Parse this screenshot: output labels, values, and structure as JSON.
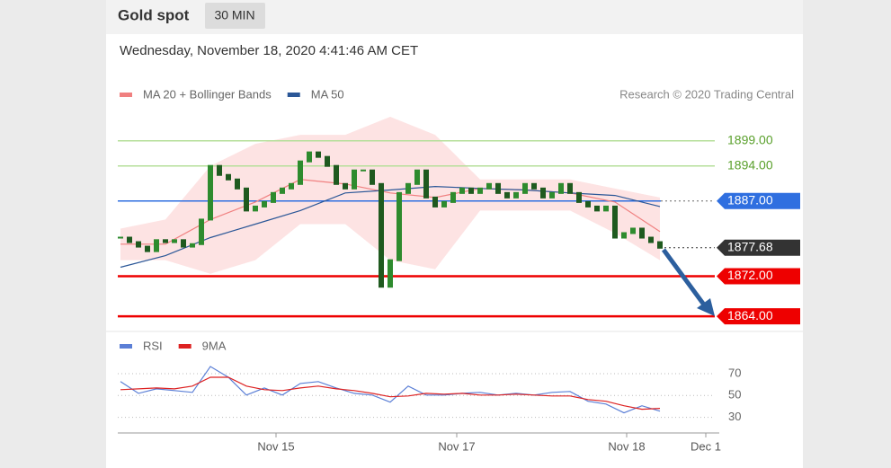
{
  "header": {
    "title": "Gold spot",
    "timeframe": "30 MIN",
    "timestamp": "Wednesday, November 18, 2020 4:41:46 AM CET"
  },
  "attribution": "Research © 2020 Trading Central",
  "chart_data": [
    {
      "type": "candlestick",
      "x": [
        0,
        1,
        2,
        3,
        4,
        5,
        6,
        7,
        8,
        9,
        10,
        11,
        12,
        13,
        14,
        15,
        16,
        17,
        18,
        19,
        20,
        21,
        22,
        23,
        24,
        25,
        26,
        27,
        28,
        29,
        30,
        31,
        32,
        33,
        34,
        35,
        36,
        37,
        38,
        39,
        40,
        41,
        42,
        43,
        44,
        45,
        46,
        47,
        48,
        49,
        50,
        51,
        52,
        53,
        54,
        55,
        56,
        57,
        58,
        59,
        60
      ],
      "values": [
        1879.7,
        1878.8,
        1877.9,
        1877.0,
        1879.2,
        1878.8,
        1879.2,
        1877.9,
        1878.4,
        1883.3,
        1894.0,
        1892.2,
        1891.3,
        1889.5,
        1885.1,
        1885.9,
        1886.8,
        1888.6,
        1889.5,
        1890.4,
        1894.9,
        1896.7,
        1895.8,
        1894.0,
        1890.4,
        1889.5,
        1893.1,
        1893.1,
        1890.4,
        1869.9,
        1875.2,
        1888.6,
        1890.4,
        1893.1,
        1887.7,
        1885.9,
        1886.8,
        1888.6,
        1889.5,
        1888.6,
        1889.5,
        1890.4,
        1888.6,
        1887.7,
        1888.6,
        1890.4,
        1889.5,
        1887.7,
        1888.6,
        1890.4,
        1888.6,
        1886.8,
        1885.9,
        1885.1,
        1885.9,
        1879.7,
        1880.6,
        1881.5,
        1879.7,
        1878.8,
        1877.68
      ],
      "colors": {
        "up": "#2e8b2e",
        "down": "#1f5a1f"
      },
      "series": [
        {
          "name": "MA 20 + Bollinger Bands",
          "color": "#f08080",
          "band_color": "#fde0e0",
          "x": [
            0,
            5,
            10,
            15,
            20,
            25,
            30,
            35,
            40,
            45,
            50,
            55,
            60
          ],
          "values": [
            1878.4,
            1878.4,
            1883.3,
            1886.8,
            1891.3,
            1890.4,
            1888.6,
            1887.7,
            1889.5,
            1889.2,
            1888.6,
            1886.8,
            1880.9
          ],
          "upper": [
            1881.5,
            1883.3,
            1894.0,
            1898.4,
            1900.2,
            1900.2,
            1903.8,
            1900.2,
            1891.3,
            1891.3,
            1891.3,
            1889.5,
            1887.7
          ],
          "lower": [
            1875.2,
            1875.2,
            1872.5,
            1875.2,
            1882.4,
            1882.4,
            1875.2,
            1873.4,
            1885.1,
            1885.1,
            1885.1,
            1880.6,
            1875.2
          ]
        },
        {
          "name": "MA 50",
          "color": "#2b5797",
          "x": [
            0,
            5,
            10,
            15,
            20,
            25,
            30,
            35,
            40,
            45,
            50,
            55,
            60
          ],
          "values": [
            1873.8,
            1876.1,
            1879.7,
            1882.4,
            1885.1,
            1888.6,
            1889.2,
            1889.9,
            1889.5,
            1889.2,
            1888.6,
            1888.1,
            1885.9
          ]
        }
      ],
      "levels": {
        "values": [
          1899,
          1894,
          1887,
          1877.68,
          1872,
          1864
        ],
        "value_labels": [
          "1899.00",
          "1894.00",
          "1887.00",
          "1877.68",
          "1872.00",
          "1864.00"
        ],
        "colors": [
          "#5aa02c",
          "#5aa02c",
          "#2f6fe0",
          "#333333",
          "#ee0000",
          "#ee0000"
        ],
        "boxed": [
          false,
          false,
          true,
          true,
          true,
          true
        ]
      },
      "xlim": [
        -0.3,
        66.6
      ],
      "ylim": [
        1861.7,
        1903.8
      ]
    },
    {
      "type": "line",
      "series": [
        {
          "name": "RSI",
          "color": "#5b7fd6",
          "x": [
            0,
            2,
            4,
            6,
            8,
            10,
            12,
            14,
            16,
            18,
            20,
            22,
            24,
            26,
            28,
            30,
            32,
            34,
            36,
            38,
            40,
            42,
            44,
            46,
            48,
            50,
            52,
            54,
            56,
            58,
            60
          ],
          "values": [
            62.7,
            52.0,
            56.1,
            54.5,
            52.9,
            76.5,
            66.7,
            50.4,
            56.9,
            50.4,
            61.0,
            62.7,
            56.9,
            52.0,
            50.4,
            43.9,
            58.6,
            50.4,
            50.4,
            52.0,
            52.9,
            50.4,
            52.0,
            50.4,
            52.9,
            53.7,
            44.7,
            42.2,
            34.1,
            40.6,
            35.7
          ]
        },
        {
          "name": "9MA",
          "color": "#dd2222",
          "x": [
            0,
            2,
            4,
            6,
            8,
            10,
            12,
            14,
            16,
            18,
            20,
            22,
            24,
            26,
            28,
            30,
            32,
            34,
            36,
            38,
            40,
            42,
            44,
            46,
            48,
            50,
            52,
            54,
            56,
            58,
            60
          ],
          "values": [
            55.3,
            56.1,
            56.9,
            56.1,
            58.6,
            66.7,
            66.7,
            58.6,
            55.3,
            54.5,
            56.9,
            58.6,
            56.1,
            54.5,
            52.0,
            48.8,
            49.6,
            52.0,
            51.2,
            52.0,
            50.4,
            50.4,
            51.2,
            50.4,
            49.6,
            49.6,
            46.3,
            44.7,
            40.6,
            37.4,
            38.2
          ]
        }
      ],
      "xlim": [
        -0.3,
        66.6
      ],
      "ylim": [
        19,
        79
      ],
      "yticks": [
        30,
        50,
        70
      ],
      "xticks": [
        {
          "value": 17.3,
          "label": "Nov 15"
        },
        {
          "value": 37.4,
          "label": "Nov 17"
        },
        {
          "value": 56.3,
          "label": "Nov 18"
        },
        {
          "value": 65.1,
          "label": "Dec 1"
        }
      ]
    }
  ]
}
